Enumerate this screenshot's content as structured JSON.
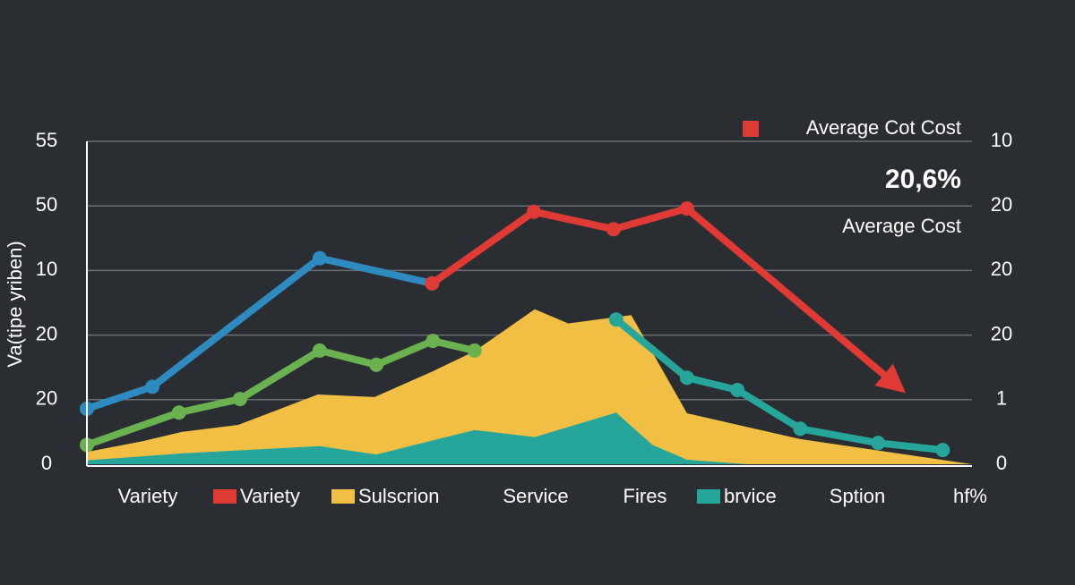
{
  "chart_data": {
    "type": "line",
    "y_label": "Va(tipe yriben)",
    "xlim": [
      0,
      100
    ],
    "ylim": [
      0,
      50
    ],
    "yticks": [
      0,
      {
        "value": 10,
        "label": "20"
      },
      {
        "value": 20,
        "label": "20"
      },
      {
        "value": 30,
        "label": "10"
      },
      {
        "value": 40,
        "label": "50"
      },
      {
        "value": 50,
        "label": "55"
      }
    ],
    "y2lim": [
      0,
      50
    ],
    "y2ticks": [
      0,
      {
        "value": 10,
        "label": "1"
      },
      20,
      {
        "value": 30,
        "label": "20"
      },
      {
        "value": 40,
        "label": "20"
      },
      {
        "value": 50,
        "label": "10"
      }
    ],
    "grid": true,
    "legend_top": {
      "label": "Average Cot Cost",
      "color": "#e03a35"
    },
    "annotation": {
      "value": "20,6%",
      "text": "Average Cost"
    },
    "x_labels": [
      "Variety",
      "Service",
      "Fires",
      "Sption",
      "hf%"
    ],
    "series": [
      {
        "name": "Sulscrion",
        "style": "area",
        "color": "#f2bf45",
        "x": [
          0,
          6.4,
          10.7,
          17.1,
          26.1,
          32.5,
          39.1,
          43.8,
          50.6,
          54.4,
          61.5,
          67.8,
          80.6,
          100
        ],
        "values": [
          1.9,
          3.6,
          5.0,
          6.1,
          10.8,
          10.4,
          14.4,
          17.5,
          24.0,
          21.8,
          23.1,
          7.9,
          3.9,
          0
        ]
      },
      {
        "name": "brvice",
        "style": "area",
        "color": "#26a69a",
        "x": [
          0,
          10.9,
          26.3,
          32.7,
          43.8,
          50.6,
          59.8,
          63.9,
          67.8,
          74.7,
          100
        ],
        "values": [
          0.6,
          1.7,
          2.8,
          1.5,
          5.3,
          4.2,
          8.0,
          3.0,
          0.7,
          0,
          0
        ]
      },
      {
        "style": "line",
        "color": "#6ab150",
        "x": [
          0,
          10.4,
          17.3,
          26.3,
          32.7,
          39.1,
          43.8
        ],
        "values": [
          3.0,
          8.0,
          10.1,
          17.6,
          15.4,
          19.1,
          17.6
        ]
      },
      {
        "style": "line",
        "color": "#2e8bc0",
        "x": [
          0,
          7.4,
          26.3,
          39.0
        ],
        "values": [
          8.6,
          12.0,
          31.9,
          28.0
        ]
      },
      {
        "name": "Variety",
        "style": "line",
        "color": "#e03a35",
        "arrow": true,
        "x": [
          39.0,
          50.5,
          59.5,
          67.8,
          91.4
        ],
        "values": [
          28.0,
          39.1,
          36.4,
          39.6,
          12.3
        ]
      },
      {
        "style": "line",
        "color": "#26a69a",
        "x": [
          59.8,
          67.8,
          73.5,
          80.6,
          89.4,
          96.7
        ],
        "values": [
          22.4,
          13.4,
          11.5,
          5.5,
          3.3,
          2.2
        ]
      }
    ]
  }
}
